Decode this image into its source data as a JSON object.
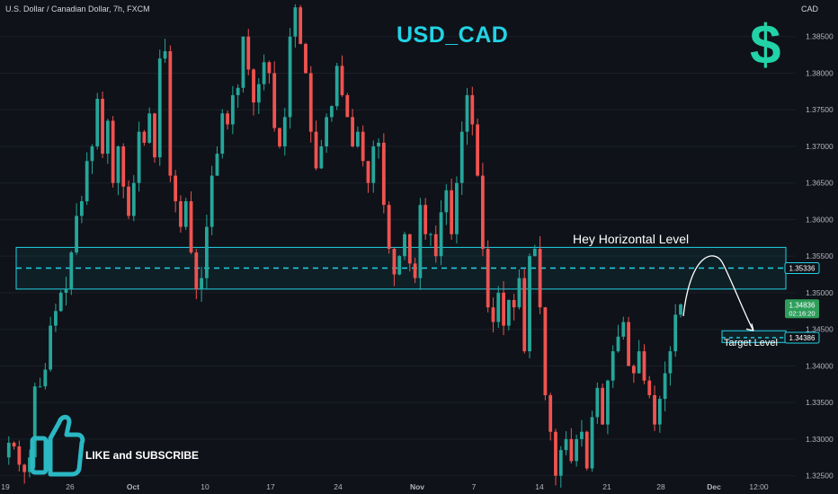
{
  "header": {
    "symbol_line": "U.S. Dollar / Canadian Dollar, 7h, FXCM",
    "currency": "CAD"
  },
  "title": "USD_CAD",
  "dollar_glyph": "$",
  "like_subscribe": "LIKE and SUBSCRIBE",
  "annotations": {
    "horizontal_level": "Hey Horizontal Level",
    "target_level": "Target Level"
  },
  "price_tags": {
    "level": "1.35336",
    "current": "1.34836",
    "countdown": "02:16:20",
    "target": "1.34386"
  },
  "colors": {
    "background": "#0f1218",
    "up_candle": "#26a69a",
    "down_candle": "#ef5350",
    "zone": "#22d3e6",
    "title": "#22d3e6",
    "icon": "#2ab8c4",
    "current_price": "#2e9e5b"
  },
  "chart_data": {
    "type": "candlestick",
    "title": "USD_CAD",
    "ylim": [
      1.3225,
      1.39
    ],
    "y_ticks": [
      1.325,
      1.33,
      1.335,
      1.34,
      1.345,
      1.35,
      1.355,
      1.36,
      1.365,
      1.37,
      1.375,
      1.38,
      1.385
    ],
    "y_tick_labels": [
      "1.32500",
      "1.33000",
      "1.33500",
      "1.34000",
      "1.34500",
      "1.35000",
      "1.35500",
      "1.36000",
      "1.36500",
      "1.37000",
      "1.37500",
      "1.38000",
      "1.38500"
    ],
    "x_tick_labels": [
      "19",
      "26",
      "Oct",
      "10",
      "17",
      "24",
      "Nov",
      "7",
      "14",
      "21",
      "28",
      "Dec",
      "12:00"
    ],
    "resistance_zone": {
      "low": 1.3505,
      "high": 1.3562,
      "level": 1.35336
    },
    "target_zone": {
      "low": 1.3432,
      "high": 1.3448,
      "level": 1.34386
    },
    "current_price": 1.34836,
    "projection": {
      "from": 1.3468,
      "peak": 1.3542,
      "to": 1.3448
    },
    "price_path": [
      1.3275,
      1.3295,
      1.329,
      1.3265,
      1.3255,
      1.3275,
      1.3372,
      1.3372,
      1.3395,
      1.3455,
      1.3475,
      1.35,
      1.3505,
      1.3555,
      1.3605,
      1.3625,
      1.368,
      1.37,
      1.3765,
      1.369,
      1.3735,
      1.365,
      1.37,
      1.3645,
      1.3605,
      1.365,
      1.372,
      1.3705,
      1.3745,
      1.3685,
      1.382,
      1.383,
      1.366,
      1.3625,
      1.359,
      1.3625,
      1.3555,
      1.3505,
      1.352,
      1.359,
      1.366,
      1.369,
      1.3745,
      1.373,
      1.377,
      1.378,
      1.385,
      1.3805,
      1.376,
      1.3785,
      1.3815,
      1.38,
      1.3725,
      1.37,
      1.374,
      1.385,
      1.389,
      1.384,
      1.38,
      1.372,
      1.367,
      1.37,
      1.374,
      1.3755,
      1.381,
      1.377,
      1.374,
      1.37,
      1.372,
      1.368,
      1.365,
      1.37,
      1.3705,
      1.362,
      1.356,
      1.3525,
      1.355,
      1.358,
      1.354,
      1.352,
      1.362,
      1.358,
      1.358,
      1.355,
      1.361,
      1.364,
      1.358,
      1.365,
      1.372,
      1.377,
      1.373,
      1.366,
      1.356,
      1.348,
      1.346,
      1.35,
      1.3455,
      1.349,
      1.348,
      1.352,
      1.342,
      1.355,
      1.356,
      1.348,
      1.336,
      1.331,
      1.325,
      1.3285,
      1.33,
      1.327,
      1.33,
      1.331,
      1.326,
      1.333,
      1.337,
      1.332,
      1.338,
      1.342,
      1.344,
      1.346,
      1.34,
      1.339,
      1.342,
      1.338,
      1.336,
      1.332,
      1.3355,
      1.339,
      1.342,
      1.347,
      1.3484
    ]
  }
}
